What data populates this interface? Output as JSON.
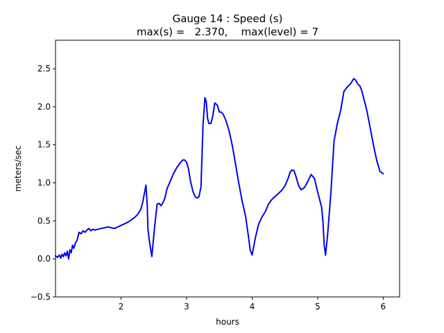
{
  "chart_data": {
    "type": "line",
    "title": "Gauge 14 : Speed (s)",
    "subtitle": "max(s) =   2.370,    max(level) = 7",
    "xlabel": "hours",
    "ylabel": "meters/sec",
    "xlim": [
      1.0,
      6.25
    ],
    "ylim": [
      -0.5,
      2.875
    ],
    "xticks": [
      2,
      3,
      4,
      5,
      6
    ],
    "yticks": [
      -0.5,
      0.0,
      0.5,
      1.0,
      1.5,
      2.0,
      2.5
    ],
    "xtick_labels": [
      "2",
      "3",
      "4",
      "5",
      "6"
    ],
    "ytick_labels": [
      "−0.5",
      "0.0",
      "0.5",
      "1.0",
      "1.5",
      "2.0",
      "2.5"
    ],
    "grid": false,
    "legend": "none",
    "series": [
      {
        "color": "#0000ee",
        "x": [
          1.0,
          1.03,
          1.06,
          1.08,
          1.1,
          1.12,
          1.14,
          1.16,
          1.18,
          1.2,
          1.22,
          1.24,
          1.26,
          1.28,
          1.3,
          1.33,
          1.36,
          1.39,
          1.42,
          1.45,
          1.48,
          1.51,
          1.54,
          1.57,
          1.6,
          1.65,
          1.7,
          1.75,
          1.8,
          1.85,
          1.9,
          1.95,
          2.0,
          2.05,
          2.1,
          2.15,
          2.2,
          2.25,
          2.3,
          2.33,
          2.36,
          2.38,
          2.4,
          2.41,
          2.43,
          2.47,
          2.51,
          2.55,
          2.58,
          2.61,
          2.64,
          2.67,
          2.7,
          2.75,
          2.8,
          2.85,
          2.9,
          2.94,
          2.97,
          3.0,
          3.03,
          3.06,
          3.1,
          3.13,
          3.16,
          3.19,
          3.22,
          3.25,
          3.28,
          3.3,
          3.32,
          3.34,
          3.37,
          3.4,
          3.43,
          3.47,
          3.5,
          3.53,
          3.56,
          3.6,
          3.65,
          3.7,
          3.75,
          3.8,
          3.85,
          3.9,
          3.94,
          3.97,
          4.0,
          4.05,
          4.1,
          4.15,
          4.2,
          4.25,
          4.3,
          4.35,
          4.4,
          4.45,
          4.5,
          4.55,
          4.58,
          4.61,
          4.64,
          4.67,
          4.71,
          4.75,
          4.8,
          4.85,
          4.9,
          4.95,
          5.0,
          5.03,
          5.06,
          5.08,
          5.1,
          5.12,
          5.15,
          5.2,
          5.25,
          5.3,
          5.35,
          5.4,
          5.45,
          5.5,
          5.55,
          5.58,
          5.61,
          5.64,
          5.67,
          5.7,
          5.75,
          5.8,
          5.85,
          5.9,
          5.95,
          6.0
        ],
        "y": [
          0.04,
          0.02,
          0.05,
          0.01,
          0.06,
          0.03,
          0.08,
          0.04,
          0.1,
          0.0,
          0.12,
          0.08,
          0.18,
          0.14,
          0.2,
          0.25,
          0.35,
          0.33,
          0.37,
          0.35,
          0.38,
          0.4,
          0.37,
          0.39,
          0.38,
          0.39,
          0.4,
          0.41,
          0.42,
          0.41,
          0.4,
          0.42,
          0.44,
          0.46,
          0.48,
          0.51,
          0.54,
          0.58,
          0.65,
          0.74,
          0.88,
          0.97,
          0.7,
          0.4,
          0.25,
          0.03,
          0.4,
          0.72,
          0.73,
          0.7,
          0.74,
          0.8,
          0.92,
          1.02,
          1.12,
          1.2,
          1.26,
          1.3,
          1.3,
          1.27,
          1.18,
          1.02,
          0.88,
          0.82,
          0.8,
          0.82,
          0.95,
          1.75,
          2.12,
          2.07,
          1.85,
          1.78,
          1.78,
          1.88,
          2.05,
          2.02,
          1.93,
          1.93,
          1.9,
          1.82,
          1.68,
          1.48,
          1.23,
          0.98,
          0.75,
          0.56,
          0.32,
          0.12,
          0.05,
          0.28,
          0.46,
          0.55,
          0.62,
          0.72,
          0.78,
          0.82,
          0.86,
          0.9,
          0.96,
          1.06,
          1.14,
          1.17,
          1.16,
          1.08,
          0.96,
          0.91,
          0.94,
          1.02,
          1.11,
          1.06,
          0.88,
          0.78,
          0.68,
          0.5,
          0.18,
          0.05,
          0.3,
          0.85,
          1.55,
          1.78,
          1.95,
          2.2,
          2.26,
          2.3,
          2.37,
          2.35,
          2.3,
          2.28,
          2.22,
          2.12,
          1.95,
          1.73,
          1.5,
          1.3,
          1.15,
          1.12
        ]
      }
    ]
  }
}
